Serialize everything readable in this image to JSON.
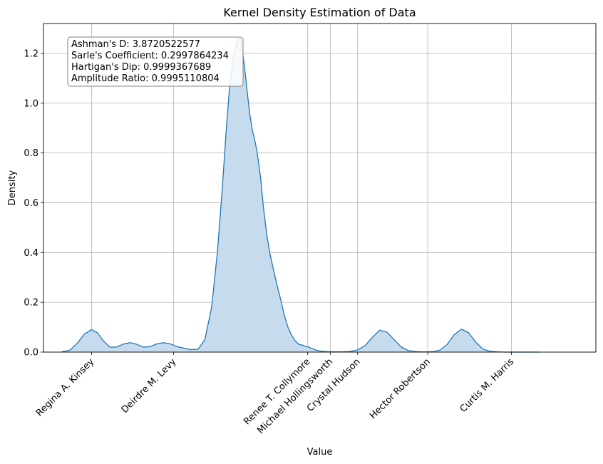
{
  "chart_data": {
    "type": "area",
    "title": "Kernel Density Estimation of Data",
    "xlabel": "Value",
    "ylabel": "Density",
    "ylim": [
      0,
      1.32
    ],
    "yticks": [
      "0.0",
      "0.2",
      "0.4",
      "0.6",
      "0.8",
      "1.0",
      "1.2"
    ],
    "ytick_values": [
      0,
      0.2,
      0.4,
      0.6,
      0.8,
      1.0,
      1.2
    ],
    "xlim": [
      -0.1,
      1.05
    ],
    "grid": true,
    "xticks": [
      {
        "label": "Regina A. Kinsey",
        "value": 0.0
      },
      {
        "label": "Deirdre M. Levy",
        "value": 0.171
      },
      {
        "label": "Renee T. Collymore",
        "value": 0.45
      },
      {
        "label": "Michael Hollingsworth",
        "value": 0.497
      },
      {
        "label": "Crystal Hudson",
        "value": 0.554
      },
      {
        "label": "Hector Robertson",
        "value": 0.7
      },
      {
        "label": "Curtis M. Harris",
        "value": 0.874
      }
    ],
    "series": [
      {
        "color": "#1f77b4",
        "fill": "#c6dcee",
        "x": [
          -0.062,
          -0.045,
          -0.03,
          -0.015,
          0.0,
          0.012,
          0.025,
          0.038,
          0.052,
          0.066,
          0.08,
          0.093,
          0.108,
          0.122,
          0.136,
          0.15,
          0.164,
          0.178,
          0.192,
          0.207,
          0.222,
          0.236,
          0.25,
          0.262,
          0.272,
          0.28,
          0.288,
          0.296,
          0.304,
          0.31,
          0.315,
          0.32,
          0.325,
          0.33,
          0.335,
          0.34,
          0.345,
          0.352,
          0.358,
          0.365,
          0.372,
          0.379,
          0.386,
          0.394,
          0.401,
          0.409,
          0.416,
          0.424,
          0.431,
          0.439,
          0.445,
          0.452,
          0.462,
          0.473,
          0.487,
          0.503,
          0.52,
          0.537,
          0.553,
          0.569,
          0.585,
          0.6,
          0.615,
          0.63,
          0.645,
          0.66,
          0.675,
          0.688,
          0.7,
          0.712,
          0.725,
          0.74,
          0.755,
          0.77,
          0.785,
          0.8,
          0.815,
          0.83,
          0.845,
          0.86,
          0.874,
          0.888,
          0.902,
          0.917,
          0.932
        ],
        "y": [
          0.001,
          0.008,
          0.035,
          0.072,
          0.09,
          0.078,
          0.045,
          0.02,
          0.02,
          0.032,
          0.038,
          0.032,
          0.02,
          0.022,
          0.033,
          0.038,
          0.033,
          0.022,
          0.016,
          0.01,
          0.012,
          0.05,
          0.18,
          0.4,
          0.65,
          0.88,
          1.08,
          1.19,
          1.26,
          1.26,
          1.2,
          1.12,
          1.03,
          0.95,
          0.89,
          0.85,
          0.8,
          0.7,
          0.58,
          0.47,
          0.39,
          0.33,
          0.27,
          0.21,
          0.15,
          0.1,
          0.07,
          0.045,
          0.032,
          0.028,
          0.024,
          0.02,
          0.012,
          0.005,
          0.002,
          0.001,
          0.001,
          0.002,
          0.008,
          0.025,
          0.06,
          0.088,
          0.08,
          0.05,
          0.02,
          0.006,
          0.002,
          0.001,
          0.001,
          0.002,
          0.008,
          0.03,
          0.07,
          0.092,
          0.078,
          0.04,
          0.012,
          0.003,
          0.001,
          0.0,
          0.0,
          0.0,
          0.0,
          0.0,
          0.0
        ]
      }
    ],
    "annotation_lines": [
      "Ashman's D: 3.8720522577",
      "Sarle's Coefficient: 0.2997864234",
      "Hartigan's Dip: 0.9999367689",
      "Amplitude Ratio: 0.9995110804"
    ]
  }
}
